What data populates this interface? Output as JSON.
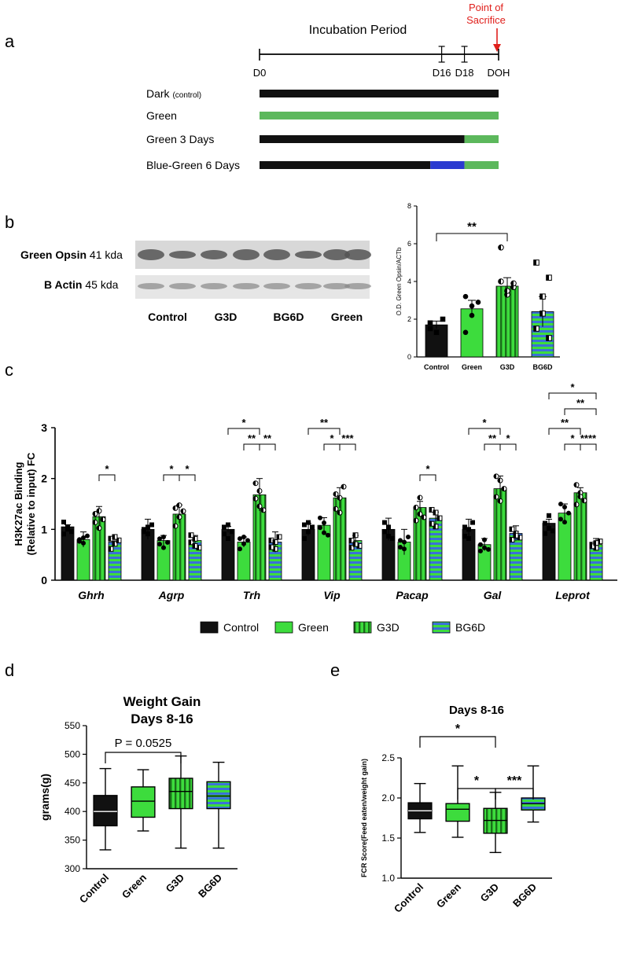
{
  "colors": {
    "black": "#111111",
    "green": "#3ddc3d",
    "lightgreen": "#5cb85c",
    "blue": "#2a3ad0",
    "stripe_blue": "#3a72d8",
    "red": "#e0201c",
    "blot_bg": "#dcdcdc",
    "blot_band": "#555555"
  },
  "panel_a": {
    "letter": "a",
    "title": "Incubation Period",
    "sacrifice_label": [
      "Point of",
      "Sacrifice"
    ],
    "days": [
      "D0",
      "D16",
      "D18",
      "DOH"
    ],
    "rows": [
      {
        "label": "Dark",
        "sublabel": "(control)",
        "segments": [
          {
            "from": 0,
            "to": 21,
            "color": "black"
          }
        ]
      },
      {
        "label": "Green",
        "sublabel": "",
        "segments": [
          {
            "from": 0,
            "to": 21,
            "color": "lightgreen"
          }
        ]
      },
      {
        "label": "Green 3 Days",
        "sublabel": "",
        "segments": [
          {
            "from": 0,
            "to": 18,
            "color": "black"
          },
          {
            "from": 18,
            "to": 21,
            "color": "lightgreen"
          }
        ]
      },
      {
        "label": "Blue-Green 6 Days",
        "sublabel": "",
        "segments": [
          {
            "from": 0,
            "to": 15,
            "color": "black"
          },
          {
            "from": 15,
            "to": 18,
            "color": "blue"
          },
          {
            "from": 18,
            "to": 21,
            "color": "lightgreen"
          }
        ]
      }
    ]
  },
  "panel_b": {
    "letter": "b",
    "blot_rows": [
      {
        "label": "Green Opsin",
        "size": "41 kda"
      },
      {
        "label": "B Actin",
        "size": "45 kda"
      }
    ],
    "lanes": [
      "Control",
      "G3D",
      "BG6D",
      "Green"
    ]
  },
  "chart_data": [
    {
      "id": "b",
      "type": "bar",
      "ylabel": "O.D. Green Opsin/ACTb",
      "ylim": [
        0,
        8
      ],
      "yticks": [
        0,
        2,
        4,
        6,
        8
      ],
      "categories": [
        "Control",
        "Green",
        "G3D",
        "BG6D"
      ],
      "values": [
        1.7,
        2.55,
        3.75,
        2.4
      ],
      "errors": [
        0.2,
        0.45,
        0.45,
        0.8
      ],
      "points": [
        [
          1.5,
          1.3,
          2.0,
          1.8
        ],
        [
          1.3,
          2.2,
          2.9,
          3.2,
          2.7
        ],
        [
          5.8,
          3.3,
          3.7,
          4.0,
          3.5,
          3.9
        ],
        [
          5.0,
          3.2,
          1.0,
          1.5,
          2.3,
          4.2
        ]
      ],
      "significance": [
        {
          "from": 0,
          "to": 2,
          "label": "**"
        }
      ]
    },
    {
      "id": "c",
      "type": "bar",
      "ylabel": [
        "H3K27ac Binding",
        "(Relative to input) FC"
      ],
      "ylim": [
        0,
        3
      ],
      "yticks": [
        0,
        1,
        2,
        3
      ],
      "categories": [
        "Ghrh",
        "Agrp",
        "Trh",
        "Vip",
        "Pacap",
        "Gal",
        "Leprot"
      ],
      "legend": [
        "Control",
        "Green",
        "G3D",
        "BG6D"
      ],
      "series": [
        {
          "name": "Control",
          "values": [
            1.05,
            1.0,
            1.0,
            1.0,
            1.0,
            1.0,
            1.12
          ],
          "errors": [
            0.04,
            0.2,
            0.06,
            0.12,
            0.22,
            0.2,
            0.08
          ]
        },
        {
          "name": "Green",
          "values": [
            0.8,
            0.78,
            0.75,
            1.08,
            0.75,
            0.7,
            1.32
          ],
          "errors": [
            0.15,
            0.1,
            0.1,
            0.15,
            0.25,
            0.12,
            0.18
          ]
        },
        {
          "name": "G3D",
          "values": [
            1.25,
            1.3,
            1.68,
            1.62,
            1.43,
            1.8,
            1.72
          ],
          "errors": [
            0.2,
            0.18,
            0.32,
            0.2,
            0.12,
            0.25,
            0.1
          ]
        },
        {
          "name": "BG6D",
          "values": [
            0.75,
            0.78,
            0.75,
            0.78,
            1.22,
            0.92,
            0.7
          ],
          "errors": [
            0.08,
            0.1,
            0.2,
            0.1,
            0.12,
            0.15,
            0.12
          ]
        }
      ],
      "significance": [
        {
          "group": 0,
          "from": 2,
          "to": 3,
          "level": 0,
          "label": "*"
        },
        {
          "group": 1,
          "from": 1,
          "to": 2,
          "level": 0,
          "label": "*"
        },
        {
          "group": 1,
          "from": 2,
          "to": 3,
          "level": 0,
          "label": "*"
        },
        {
          "group": 2,
          "from": 0,
          "to": 2,
          "level": 2,
          "label": "*"
        },
        {
          "group": 2,
          "from": 1,
          "to": 2,
          "level": 1,
          "label": "**"
        },
        {
          "group": 2,
          "from": 2,
          "to": 3,
          "level": 1,
          "label": "**"
        },
        {
          "group": 3,
          "from": 0,
          "to": 2,
          "level": 2,
          "label": "**"
        },
        {
          "group": 3,
          "from": 1,
          "to": 2,
          "level": 1,
          "label": "*"
        },
        {
          "group": 3,
          "from": 2,
          "to": 3,
          "level": 1,
          "label": "***"
        },
        {
          "group": 4,
          "from": 2,
          "to": 3,
          "level": 0,
          "label": "*"
        },
        {
          "group": 5,
          "from": 0,
          "to": 2,
          "level": 2,
          "label": "*"
        },
        {
          "group": 5,
          "from": 1,
          "to": 2,
          "level": 1,
          "label": "**"
        },
        {
          "group": 5,
          "from": 2,
          "to": 3,
          "level": 1,
          "label": "*"
        },
        {
          "group": 6,
          "from": 0,
          "to": 3,
          "level": 4,
          "label": "*"
        },
        {
          "group": 6,
          "from": 1,
          "to": 3,
          "level": 3,
          "label": "**"
        },
        {
          "group": 6,
          "from": 0,
          "to": 2,
          "level": 2,
          "label": "**"
        },
        {
          "group": 6,
          "from": 1,
          "to": 2,
          "level": 1,
          "label": "*"
        },
        {
          "group": 6,
          "from": 2,
          "to": 3,
          "level": 1,
          "label": "****"
        }
      ]
    },
    {
      "id": "d",
      "type": "box",
      "title": [
        "Weight Gain",
        "Days 8-16"
      ],
      "ylabel": "grams(g)",
      "ylim": [
        300,
        550
      ],
      "yticks": [
        300,
        350,
        400,
        450,
        500,
        550
      ],
      "categories": [
        "Control",
        "Green",
        "G3D",
        "BG6D"
      ],
      "boxes": [
        {
          "min": 333,
          "q1": 375,
          "median": 400,
          "q3": 428,
          "max": 475
        },
        {
          "min": 366,
          "q1": 390,
          "median": 418,
          "q3": 443,
          "max": 473
        },
        {
          "min": 336,
          "q1": 405,
          "median": 435,
          "q3": 458,
          "max": 497
        },
        {
          "min": 336,
          "q1": 405,
          "median": 427,
          "q3": 452,
          "max": 486
        }
      ],
      "annotation": {
        "from": 0,
        "to": 2,
        "label": "P = 0.0525"
      }
    },
    {
      "id": "e",
      "type": "box",
      "title": [
        "Days 8-16"
      ],
      "ylabel": "FCR Score(Feed eaten/weight gain)",
      "ylim": [
        1.0,
        2.5
      ],
      "yticks": [
        1.0,
        1.5,
        2.0,
        2.5
      ],
      "categories": [
        "Control",
        "Green",
        "G3D",
        "BG6D"
      ],
      "boxes": [
        {
          "min": 1.57,
          "q1": 1.74,
          "median": 1.84,
          "q3": 1.94,
          "max": 2.18
        },
        {
          "min": 1.51,
          "q1": 1.71,
          "median": 1.86,
          "q3": 1.93,
          "max": 2.4
        },
        {
          "min": 1.32,
          "q1": 1.56,
          "median": 1.72,
          "q3": 1.87,
          "max": 2.07
        },
        {
          "min": 1.7,
          "q1": 1.85,
          "median": 1.93,
          "q3": 2.0,
          "max": 2.4
        }
      ],
      "significance": [
        {
          "from": 0,
          "to": 2,
          "level": 1,
          "label": "*"
        },
        {
          "from": 1,
          "to": 2,
          "level": 0,
          "label": "*"
        },
        {
          "from": 2,
          "to": 3,
          "level": 0,
          "label": "***"
        }
      ]
    }
  ],
  "panel_letters": {
    "c": "c",
    "d": "d",
    "e": "e"
  }
}
